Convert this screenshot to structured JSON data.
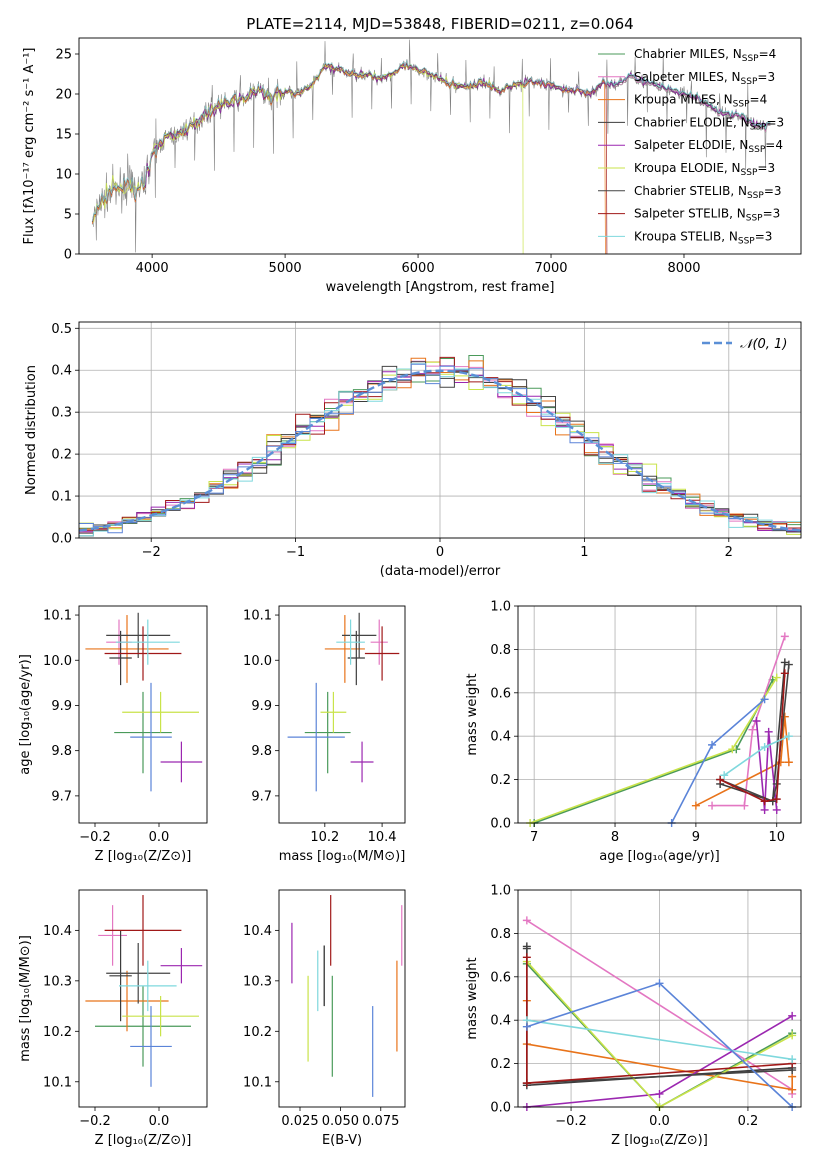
{
  "figure": {
    "title": "PLATE=2114, MJD=53848, FIBERID=0211, z=0.064"
  },
  "colors": {
    "chabrier_miles": "#4a9a5a",
    "salpeter_miles": "#e377c2",
    "kroupa_miles": "#e8731a",
    "chabrier_elodie": "#3c3c3c",
    "salpeter_elodie": "#9b27b0",
    "kroupa_elodie": "#c9e34a",
    "chabrier_stelib": "#444444",
    "salpeter_stelib": "#a01818",
    "kroupa_stelib": "#7fd8dd",
    "blue_series": "#5b84d8",
    "spectrum": "#808080",
    "normal_curve": "#5b8fd6"
  },
  "chart_data": [
    {
      "id": "spectrum",
      "type": "line",
      "xlabel": "wavelength [Angstrom, rest frame]",
      "ylabel": "Flux [fλ10⁻¹⁷ erg cm⁻² s⁻¹ A⁻¹]",
      "xlim": [
        3450,
        8880
      ],
      "ylim": [
        0,
        27
      ],
      "xticks": [
        "4000",
        "5000",
        "6000",
        "7000",
        "8000"
      ],
      "yticks": [
        "0",
        "5",
        "10",
        "15",
        "20",
        "25"
      ],
      "legend_position": "top-right",
      "legend": [
        {
          "label": "Chabrier MILES, N",
          "sub": "SSP",
          "suffix": "=4",
          "color": "#4a9a5a"
        },
        {
          "label": "Salpeter MILES, N",
          "sub": "SSP",
          "suffix": "=3",
          "color": "#e377c2"
        },
        {
          "label": "Kroupa MILES, N",
          "sub": "SSP",
          "suffix": "=4",
          "color": "#e8731a"
        },
        {
          "label": "Chabrier ELODIE, N",
          "sub": "SSP",
          "suffix": "=3",
          "color": "#3c3c3c"
        },
        {
          "label": "Salpeter ELODIE, N",
          "sub": "SSP",
          "suffix": "=4",
          "color": "#9b27b0"
        },
        {
          "label": "Kroupa ELODIE, N",
          "sub": "SSP",
          "suffix": "=3",
          "color": "#c9e34a"
        },
        {
          "label": "Chabrier STELIB, N",
          "sub": "SSP",
          "suffix": "=3",
          "color": "#444444"
        },
        {
          "label": "Salpeter STELIB, N",
          "sub": "SSP",
          "suffix": "=3",
          "color": "#a01818"
        },
        {
          "label": "Kroupa STELIB, N",
          "sub": "SSP",
          "suffix": "=3",
          "color": "#7fd8dd"
        }
      ],
      "anchors": [
        [
          3560,
          4.5
        ],
        [
          3620,
          6.5
        ],
        [
          3700,
          8.0
        ],
        [
          3800,
          8.5
        ],
        [
          3900,
          8.0
        ],
        [
          3940,
          9.0
        ],
        [
          4000,
          12.5
        ],
        [
          4100,
          14.5
        ],
        [
          4200,
          15.0
        ],
        [
          4300,
          16.0
        ],
        [
          4400,
          17.5
        ],
        [
          4500,
          18.5
        ],
        [
          4600,
          19.0
        ],
        [
          4700,
          19.5
        ],
        [
          4800,
          20.5
        ],
        [
          4900,
          19.5
        ],
        [
          5000,
          20.5
        ],
        [
          5100,
          20.0
        ],
        [
          5200,
          21.0
        ],
        [
          5300,
          23.5
        ],
        [
          5400,
          23.0
        ],
        [
          5500,
          22.5
        ],
        [
          5600,
          22.5
        ],
        [
          5700,
          22.0
        ],
        [
          5800,
          22.5
        ],
        [
          5900,
          23.5
        ],
        [
          6000,
          23.0
        ],
        [
          6100,
          22.5
        ],
        [
          6200,
          21.5
        ],
        [
          6300,
          21.0
        ],
        [
          6400,
          21.0
        ],
        [
          6500,
          21.5
        ],
        [
          6600,
          20.5
        ],
        [
          6700,
          21.0
        ],
        [
          6800,
          21.5
        ],
        [
          6900,
          21.5
        ],
        [
          7000,
          21.0
        ],
        [
          7100,
          20.5
        ],
        [
          7200,
          20.5
        ],
        [
          7300,
          20.0
        ],
        [
          7400,
          21.5
        ],
        [
          7500,
          21.0
        ],
        [
          7600,
          22.5
        ],
        [
          7700,
          21.5
        ],
        [
          7800,
          21.0
        ],
        [
          7900,
          20.5
        ],
        [
          8000,
          20.0
        ],
        [
          8100,
          19.5
        ],
        [
          8200,
          18.5
        ],
        [
          8300,
          17.5
        ],
        [
          8400,
          17.5
        ],
        [
          8500,
          16.5
        ],
        [
          8600,
          16.0
        ]
      ],
      "model_start": [
        3550,
        3550,
        3550,
        3950,
        3950,
        3560,
        3550,
        3550,
        3550
      ],
      "model_end": [
        8650,
        8650,
        7410,
        8650,
        8650,
        6790,
        8650,
        7420,
        8650
      ]
    },
    {
      "id": "residuals",
      "type": "histogram",
      "xlabel": "(data-model)/error",
      "ylabel": "Normed distribution",
      "xlim": [
        -2.5,
        2.5
      ],
      "ylim": [
        0,
        0.515
      ],
      "xticks": [
        "−2",
        "−1",
        "0",
        "1",
        "2"
      ],
      "yticks": [
        "0.0",
        "0.1",
        "0.2",
        "0.3",
        "0.4",
        "0.5"
      ],
      "grid": true,
      "legend_position": "top-right",
      "legend": [
        {
          "label": "𝒩(0, 1)",
          "color": "#5b8fd6"
        }
      ],
      "bins": 50
    },
    {
      "id": "age_vs_z",
      "type": "errorbar",
      "xlabel": "Z [log₁₀(Z/Z⊙)]",
      "ylabel": "age  [log₁₀(age/yr)]",
      "xlim": [
        -0.25,
        0.15
      ],
      "ylim": [
        9.64,
        10.12
      ],
      "xticks": [
        "−0.2",
        "0.0"
      ],
      "yticks": [
        "9.7",
        "9.8",
        "9.9",
        "10.0",
        "10.1"
      ],
      "points": [
        {
          "x": -0.05,
          "xerr": 0.09,
          "y": 9.84,
          "yerr": 0.09,
          "color": "#4a9a5a"
        },
        {
          "x": -0.125,
          "xerr": 0.04,
          "y": 10.04,
          "yerr": 0.05,
          "color": "#e377c2"
        },
        {
          "x": -0.1,
          "xerr": 0.13,
          "y": 10.025,
          "yerr": 0.075,
          "color": "#e8731a"
        },
        {
          "x": -0.12,
          "xerr": 0.035,
          "y": 10.005,
          "yerr": 0.06,
          "color": "#3c3c3c"
        },
        {
          "x": 0.07,
          "xerr": 0.065,
          "y": 9.775,
          "yerr": 0.045,
          "color": "#9b27b0"
        },
        {
          "x": 0.005,
          "xerr": 0.12,
          "y": 9.885,
          "yerr": 0.045,
          "color": "#c9e34a"
        },
        {
          "x": -0.065,
          "xerr": 0.1,
          "y": 10.055,
          "yerr": 0.05,
          "color": "#444444"
        },
        {
          "x": -0.05,
          "xerr": 0.12,
          "y": 10.015,
          "yerr": 0.06,
          "color": "#a01818"
        },
        {
          "x": -0.035,
          "xerr": 0.1,
          "y": 10.04,
          "yerr": 0.05,
          "color": "#7fd8dd"
        },
        {
          "x": -0.025,
          "xerr": 0.065,
          "y": 9.83,
          "yerr": 0.12,
          "color": "#5b84d8"
        }
      ]
    },
    {
      "id": "age_vs_mass",
      "type": "errorbar",
      "xlabel": "mass [log₁₀(M/M⊙)]",
      "ylabel": "",
      "xlim": [
        10.04,
        10.48
      ],
      "ylim": [
        9.64,
        10.12
      ],
      "xticks": [
        "10.2",
        "10.4"
      ],
      "yticks": [
        "9.7",
        "9.8",
        "9.9",
        "10.0",
        "10.1"
      ],
      "points": [
        {
          "x": 10.21,
          "xerr": 0.08,
          "y": 9.84,
          "yerr": 0.09,
          "color": "#4a9a5a"
        },
        {
          "x": 10.39,
          "xerr": 0.03,
          "y": 10.04,
          "yerr": 0.05,
          "color": "#e377c2"
        },
        {
          "x": 10.27,
          "xerr": 0.07,
          "y": 10.025,
          "yerr": 0.075,
          "color": "#e8731a"
        },
        {
          "x": 10.31,
          "xerr": 0.03,
          "y": 10.005,
          "yerr": 0.06,
          "color": "#3c3c3c"
        },
        {
          "x": 10.33,
          "xerr": 0.04,
          "y": 9.775,
          "yerr": 0.045,
          "color": "#9b27b0"
        },
        {
          "x": 10.23,
          "xerr": 0.045,
          "y": 9.885,
          "yerr": 0.045,
          "color": "#c9e34a"
        },
        {
          "x": 10.32,
          "xerr": 0.06,
          "y": 10.055,
          "yerr": 0.05,
          "color": "#444444"
        },
        {
          "x": 10.4,
          "xerr": 0.06,
          "y": 10.015,
          "yerr": 0.06,
          "color": "#a01818"
        },
        {
          "x": 10.29,
          "xerr": 0.05,
          "y": 10.04,
          "yerr": 0.05,
          "color": "#7fd8dd"
        },
        {
          "x": 10.17,
          "xerr": 0.1,
          "y": 9.83,
          "yerr": 0.12,
          "color": "#5b84d8"
        }
      ]
    },
    {
      "id": "weight_vs_age",
      "type": "line",
      "xlabel": "age  [log₁₀(age/yr)]",
      "ylabel": "mass weight",
      "xlim": [
        6.8,
        10.3
      ],
      "ylim": [
        0,
        1.0
      ],
      "xticks": [
        "7",
        "8",
        "9",
        "10"
      ],
      "yticks": [
        "0.0",
        "0.2",
        "0.4",
        "0.6",
        "0.8",
        "1.0"
      ],
      "grid": true,
      "series": [
        {
          "color": "#4a9a5a",
          "x": [
            7.0,
            9.5,
            9.95
          ],
          "y": [
            0.0,
            0.34,
            0.66
          ]
        },
        {
          "color": "#e377c2",
          "x": [
            9.2,
            9.6,
            9.7,
            10.1
          ],
          "y": [
            0.08,
            0.08,
            0.43,
            0.86
          ]
        },
        {
          "color": "#e8731a",
          "x": [
            9.0,
            10.05,
            10.1,
            10.15
          ],
          "y": [
            0.08,
            0.28,
            0.49,
            0.28
          ]
        },
        {
          "color": "#3c3c3c",
          "x": [
            9.3,
            9.95,
            10.1
          ],
          "y": [
            0.18,
            0.1,
            0.74
          ]
        },
        {
          "color": "#9b27b0",
          "x": [
            9.75,
            9.85,
            9.9,
            10.0
          ],
          "y": [
            0.47,
            0.06,
            0.42,
            0.06
          ]
        },
        {
          "color": "#c9e34a",
          "x": [
            6.95,
            9.45,
            10.0
          ],
          "y": [
            0.0,
            0.34,
            0.67
          ]
        },
        {
          "color": "#444444",
          "x": [
            9.3,
            9.95,
            10.0,
            10.15
          ],
          "y": [
            0.2,
            0.1,
            0.18,
            0.73
          ]
        },
        {
          "color": "#a01818",
          "x": [
            9.3,
            9.85,
            10.0,
            10.1
          ],
          "y": [
            0.2,
            0.1,
            0.11,
            0.69
          ]
        },
        {
          "color": "#7fd8dd",
          "x": [
            9.35,
            9.85,
            10.15
          ],
          "y": [
            0.22,
            0.35,
            0.4
          ]
        },
        {
          "color": "#5b84d8",
          "x": [
            8.7,
            9.2,
            9.85
          ],
          "y": [
            0.0,
            0.36,
            0.57
          ]
        }
      ]
    },
    {
      "id": "mass_vs_z",
      "type": "errorbar",
      "xlabel": "Z [log₁₀(Z/Z⊙)]",
      "ylabel": "mass [log₁₀(M/M⊙)]",
      "xlim": [
        -0.25,
        0.15
      ],
      "ylim": [
        10.05,
        10.48
      ],
      "xticks": [
        "−0.2",
        "0.0"
      ],
      "yticks": [
        "10.1",
        "10.2",
        "10.3",
        "10.4"
      ],
      "points": [
        {
          "x": -0.05,
          "xerr": 0.15,
          "y": 10.21,
          "yerr": 0.08,
          "color": "#4a9a5a"
        },
        {
          "x": -0.145,
          "xerr": 0.045,
          "y": 10.39,
          "yerr": 0.06,
          "color": "#e377c2"
        },
        {
          "x": -0.1,
          "xerr": 0.13,
          "y": 10.26,
          "yerr": 0.06,
          "color": "#e8731a"
        },
        {
          "x": -0.12,
          "xerr": 0.035,
          "y": 10.31,
          "yerr": 0.09,
          "color": "#3c3c3c"
        },
        {
          "x": 0.07,
          "xerr": 0.065,
          "y": 10.33,
          "yerr": 0.035,
          "color": "#9b27b0"
        },
        {
          "x": 0.005,
          "xerr": 0.12,
          "y": 10.23,
          "yerr": 0.04,
          "color": "#c9e34a"
        },
        {
          "x": -0.065,
          "xerr": 0.1,
          "y": 10.315,
          "yerr": 0.06,
          "color": "#444444"
        },
        {
          "x": -0.05,
          "xerr": 0.12,
          "y": 10.4,
          "yerr": 0.07,
          "color": "#a01818"
        },
        {
          "x": -0.035,
          "xerr": 0.09,
          "y": 10.29,
          "yerr": 0.05,
          "color": "#7fd8dd"
        },
        {
          "x": -0.025,
          "xerr": 0.065,
          "y": 10.17,
          "yerr": 0.08,
          "color": "#5b84d8"
        }
      ]
    },
    {
      "id": "mass_vs_ebv",
      "type": "errorbar",
      "xlabel": "E(B-V)",
      "ylabel": "",
      "xlim": [
        0.012,
        0.09
      ],
      "ylim": [
        10.05,
        10.48
      ],
      "xticks": [
        "0.025",
        "0.050",
        "0.075"
      ],
      "yticks": [
        "10.1",
        "10.2",
        "10.3",
        "10.4"
      ],
      "points": [
        {
          "x": 0.045,
          "xerr": 0,
          "y": 10.21,
          "yerr": 0.1,
          "color": "#4a9a5a"
        },
        {
          "x": 0.088,
          "xerr": 0,
          "y": 10.39,
          "yerr": 0.06,
          "color": "#e377c2"
        },
        {
          "x": 0.085,
          "xerr": 0,
          "y": 10.25,
          "yerr": 0.09,
          "color": "#e8731a"
        },
        {
          "x": 0.04,
          "xerr": 0,
          "y": 10.31,
          "yerr": 0.06,
          "color": "#3c3c3c"
        },
        {
          "x": 0.02,
          "xerr": 0,
          "y": 10.355,
          "yerr": 0.06,
          "color": "#9b27b0"
        },
        {
          "x": 0.03,
          "xerr": 0,
          "y": 10.225,
          "yerr": 0.085,
          "color": "#c9e34a"
        },
        {
          "x": 0.04,
          "xerr": 0,
          "y": 10.31,
          "yerr": 0.06,
          "color": "#444444"
        },
        {
          "x": 0.044,
          "xerr": 0,
          "y": 10.4,
          "yerr": 0.07,
          "color": "#a01818"
        },
        {
          "x": 0.036,
          "xerr": 0,
          "y": 10.3,
          "yerr": 0.06,
          "color": "#7fd8dd"
        },
        {
          "x": 0.07,
          "xerr": 0,
          "y": 10.16,
          "yerr": 0.09,
          "color": "#5b84d8"
        }
      ]
    },
    {
      "id": "weight_vs_z",
      "type": "line",
      "xlabel": "Z [log₁₀(Z/Z⊙)]",
      "ylabel": "mass weight",
      "xlim": [
        -0.32,
        0.32
      ],
      "ylim": [
        0,
        1.0
      ],
      "xticks": [
        "−0.2",
        "0.0",
        "0.2"
      ],
      "yticks": [
        "0.0",
        "0.2",
        "0.4",
        "0.6",
        "0.8",
        "1.0"
      ],
      "grid": true,
      "series": [
        {
          "color": "#4a9a5a",
          "x": [
            -0.3,
            0.0,
            0.3
          ],
          "y": [
            0.66,
            0.0,
            0.34
          ]
        },
        {
          "color": "#e377c2",
          "x": [
            -0.3,
            0.3,
            0.3
          ],
          "y": [
            0.86,
            0.08,
            0.06
          ]
        },
        {
          "color": "#e8731a",
          "x": [
            -0.3,
            -0.3,
            0.3,
            0.3
          ],
          "y": [
            0.49,
            0.29,
            0.08,
            0.14
          ]
        },
        {
          "color": "#3c3c3c",
          "x": [
            -0.3,
            -0.3,
            0.3
          ],
          "y": [
            0.74,
            0.1,
            0.18
          ]
        },
        {
          "color": "#9b27b0",
          "x": [
            -0.3,
            0.0,
            0.3
          ],
          "y": [
            0.0,
            0.06,
            0.42
          ]
        },
        {
          "color": "#c9e34a",
          "x": [
            -0.3,
            0.0,
            0.3
          ],
          "y": [
            0.67,
            0.0,
            0.33
          ]
        },
        {
          "color": "#444444",
          "x": [
            -0.3,
            -0.3,
            0.3
          ],
          "y": [
            0.73,
            0.11,
            0.17
          ]
        },
        {
          "color": "#a01818",
          "x": [
            -0.3,
            -0.3,
            0.3
          ],
          "y": [
            0.69,
            0.11,
            0.2
          ]
        },
        {
          "color": "#7fd8dd",
          "x": [
            -0.3,
            0.3
          ],
          "y": [
            0.4,
            0.22
          ]
        },
        {
          "color": "#5b84d8",
          "x": [
            -0.3,
            0.0,
            0.3
          ],
          "y": [
            0.37,
            0.57,
            0.0
          ]
        }
      ]
    }
  ]
}
